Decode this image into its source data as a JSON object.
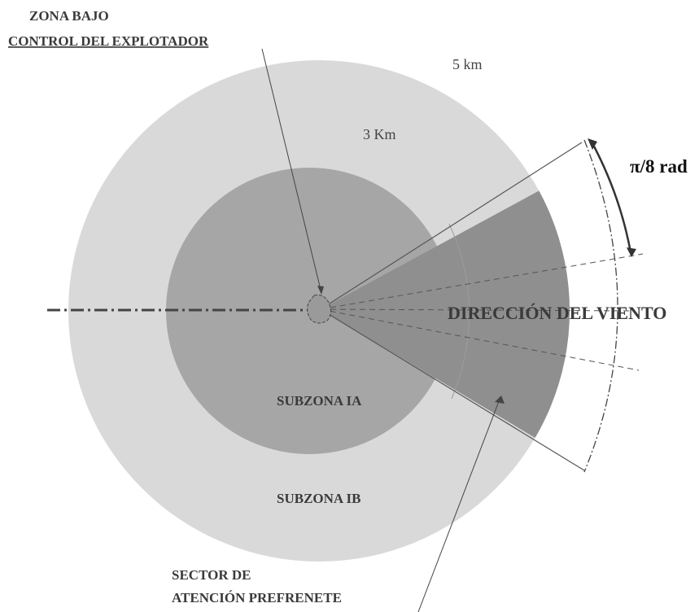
{
  "labels": {
    "zona_bajo_line1": "ZONA BAJO",
    "zona_bajo_line2": "CONTROL DEL EXPLOTADOR",
    "dist_outer": "5 km",
    "dist_inner": "3  Km",
    "angle": "π/8 rad",
    "wind": "DIRECCIÓN DEL VIENTO",
    "subzona_ia": "SUBZONA IA",
    "subzona_ib": "SUBZONA  IB",
    "sector_line1": "SECTOR DE",
    "sector_line2": "ATENCIÓN PREFRENETE"
  },
  "colors": {
    "outer_zone": "#d9d9d9",
    "inner_zone": "#a6a6a6",
    "sector": "#8f8f8f",
    "lines": "#555555"
  }
}
